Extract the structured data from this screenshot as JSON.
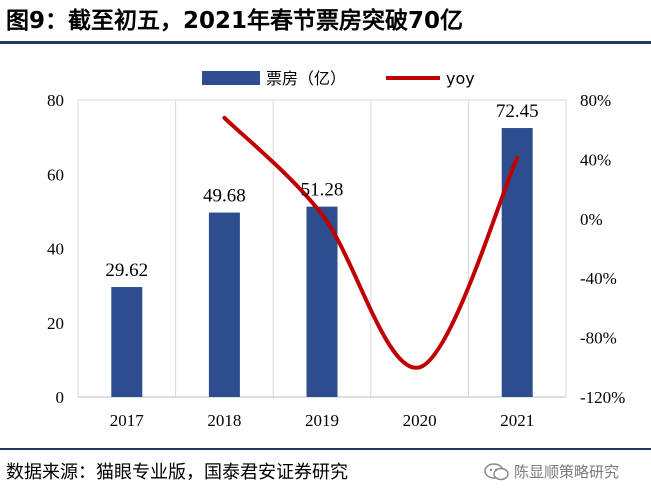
{
  "header": {
    "title": "图9：截至初五，2021年春节票房突破70亿"
  },
  "chart_data": {
    "type": "bar+line",
    "categories": [
      "2017",
      "2018",
      "2019",
      "2020",
      "2021"
    ],
    "series": [
      {
        "name": "票房（亿）",
        "type": "bar",
        "axis": "left",
        "color": "#2e4d8f",
        "values": [
          29.62,
          49.68,
          51.28,
          0,
          72.45
        ],
        "labels": [
          "29.62",
          "49.68",
          "51.28",
          "",
          "72.45"
        ]
      },
      {
        "name": "yoy",
        "type": "line",
        "axis": "right",
        "color": "#c00000",
        "values": [
          null,
          0.68,
          0.03,
          -1.0,
          0.41
        ]
      }
    ],
    "y_left": {
      "min": 0,
      "max": 80,
      "ticks": [
        0,
        20,
        40,
        60,
        80
      ],
      "tick_labels": [
        "0",
        "20",
        "40",
        "60",
        "80"
      ]
    },
    "y_right": {
      "min": -1.2,
      "max": 0.8,
      "ticks": [
        0.8,
        0.4,
        0,
        -0.4,
        -0.8,
        -1.2
      ],
      "tick_labels": [
        "80%",
        "40%",
        "0%",
        "-40%",
        "-80%",
        "-120%"
      ]
    },
    "grid": "vertical",
    "legend_position": "top"
  },
  "footer": {
    "source": "数据来源：猫眼专业版，国泰君安证券研究",
    "watermark": "陈显顺策略研究"
  }
}
